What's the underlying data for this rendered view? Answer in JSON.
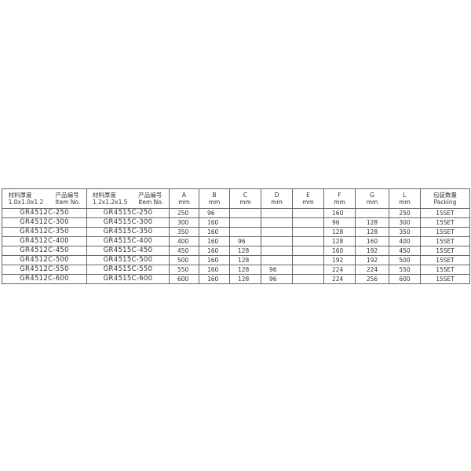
{
  "headers": {
    "col1": {
      "thickness_label": "材料厚度",
      "thickness": "1.0x1.0x1.2",
      "item_label_cn": "产品编号",
      "item_label": "Item No."
    },
    "col2": {
      "thickness_label": "材料厚度",
      "thickness": "1.2x1.2x1.5",
      "item_label_cn": "产品编号",
      "item_label": "Item No."
    },
    "dims": [
      {
        "name": "A",
        "unit": "mm"
      },
      {
        "name": "B",
        "unit": "mm"
      },
      {
        "name": "C",
        "unit": "mm"
      },
      {
        "name": "D",
        "unit": "mm"
      },
      {
        "name": "E",
        "unit": "mm"
      },
      {
        "name": "F",
        "unit": "mm"
      },
      {
        "name": "G",
        "unit": "mm"
      },
      {
        "name": "L",
        "unit": "mm"
      }
    ],
    "packing": {
      "cn": "包装数量",
      "en": "Packing"
    }
  },
  "rows": [
    {
      "item1": "GR4512C-250",
      "item2": "GR4515C-250",
      "A": "250",
      "B": "96",
      "C": "",
      "D": "",
      "E": "",
      "F": "160",
      "G": "",
      "L": "250",
      "packing": "15SET"
    },
    {
      "item1": "GR4512C-300",
      "item2": "GR4515C-300",
      "A": "300",
      "B": "160",
      "C": "",
      "D": "",
      "E": "",
      "F": "96",
      "G": "128",
      "L": "300",
      "packing": "15SET"
    },
    {
      "item1": "GR4512C-350",
      "item2": "GR4515C-350",
      "A": "350",
      "B": "160",
      "C": "",
      "D": "",
      "E": "",
      "F": "128",
      "G": "128",
      "L": "350",
      "packing": "15SET"
    },
    {
      "item1": "GR4512C-400",
      "item2": "GR4515C-400",
      "A": "400",
      "B": "160",
      "C": "96",
      "D": "",
      "E": "",
      "F": "128",
      "G": "160",
      "L": "400",
      "packing": "15SET"
    },
    {
      "item1": "GR4512C-450",
      "item2": "GR4515C-450",
      "A": "450",
      "B": "160",
      "C": "128",
      "D": "",
      "E": "",
      "F": "160",
      "G": "192",
      "L": "450",
      "packing": "15SET"
    },
    {
      "item1": "GR4512C-500",
      "item2": "GR4515C-500",
      "A": "500",
      "B": "160",
      "C": "128",
      "D": "",
      "E": "",
      "F": "192",
      "G": "192",
      "L": "500",
      "packing": "15SET"
    },
    {
      "item1": "GR4512C-550",
      "item2": "GR4515C-550",
      "A": "550",
      "B": "160",
      "C": "128",
      "D": "96",
      "E": "",
      "F": "224",
      "G": "224",
      "L": "550",
      "packing": "15SET"
    },
    {
      "item1": "GR4512C-600",
      "item2": "GR4515C-600",
      "A": "600",
      "B": "160",
      "C": "128",
      "D": "96",
      "E": "",
      "F": "224",
      "G": "256",
      "L": "600",
      "packing": "15SET"
    }
  ]
}
